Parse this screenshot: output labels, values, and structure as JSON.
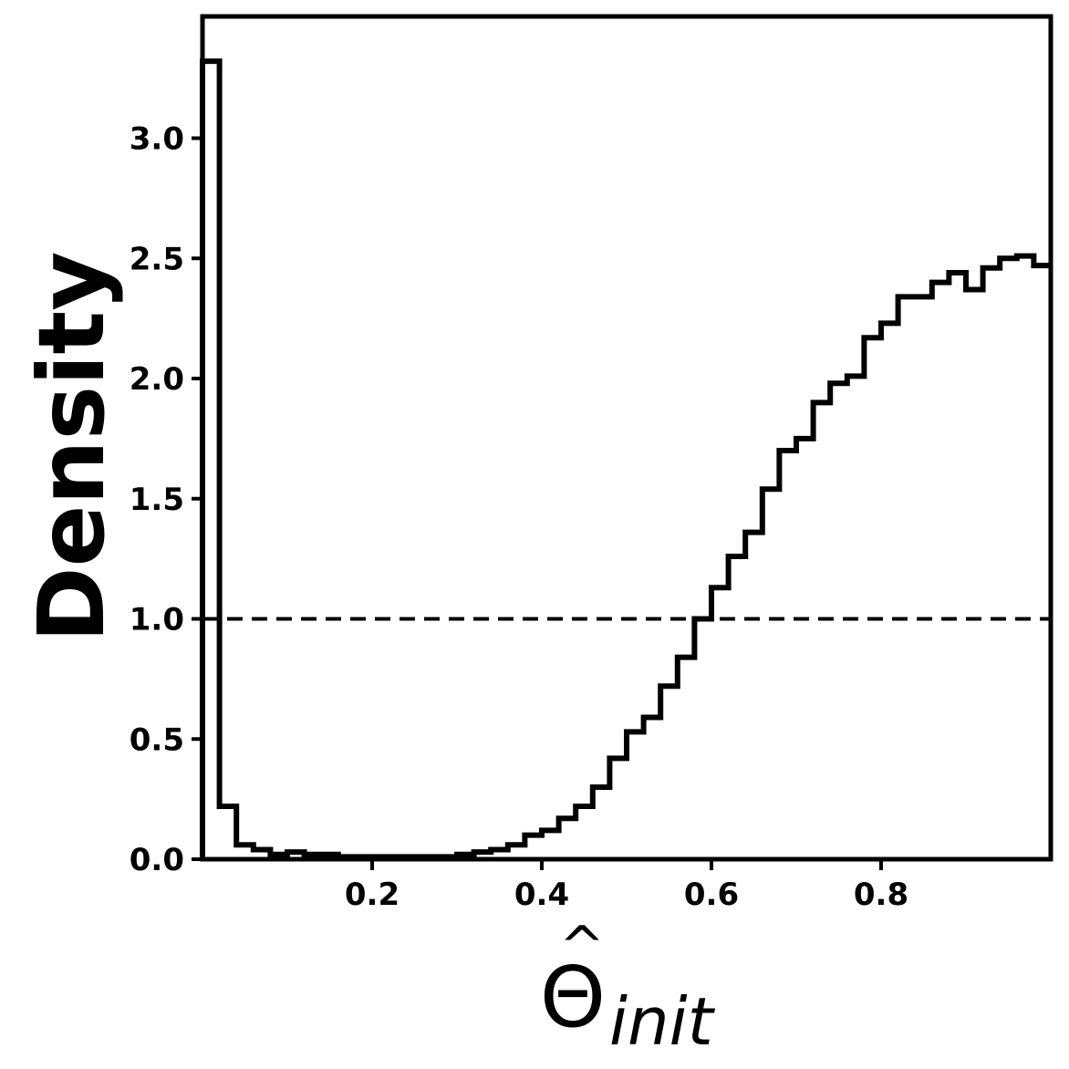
{
  "chart_data": {
    "type": "histogram",
    "ylabel": "Density",
    "xlabel": {
      "symbol": "Θ",
      "accent": "^",
      "subscript": "init"
    },
    "xlim": [
      0.0,
      1.0
    ],
    "ylim": [
      0.0,
      3.5
    ],
    "xticks": [
      {
        "value": 0.2,
        "label": "0.2"
      },
      {
        "value": 0.4,
        "label": "0.4"
      },
      {
        "value": 0.6,
        "label": "0.6"
      },
      {
        "value": 0.8,
        "label": "0.8"
      }
    ],
    "yticks": [
      {
        "value": 0.0,
        "label": "0.0"
      },
      {
        "value": 0.5,
        "label": "0.5"
      },
      {
        "value": 1.0,
        "label": "1.0"
      },
      {
        "value": 1.5,
        "label": "1.5"
      },
      {
        "value": 2.0,
        "label": "2.0"
      },
      {
        "value": 2.5,
        "label": "2.5"
      },
      {
        "value": 3.0,
        "label": "3.0"
      }
    ],
    "bin_width": 0.02,
    "bin_starts": [
      0.0,
      0.02,
      0.04,
      0.06,
      0.08,
      0.1,
      0.12,
      0.14,
      0.16,
      0.18,
      0.2,
      0.22,
      0.24,
      0.26,
      0.28,
      0.3,
      0.32,
      0.34,
      0.36,
      0.38,
      0.4,
      0.42,
      0.44,
      0.46,
      0.48,
      0.5,
      0.52,
      0.54,
      0.56,
      0.58,
      0.6,
      0.62,
      0.64,
      0.66,
      0.68,
      0.7,
      0.72,
      0.74,
      0.76,
      0.78,
      0.8,
      0.82,
      0.84,
      0.86,
      0.88,
      0.9,
      0.92,
      0.94,
      0.96,
      0.98
    ],
    "density": [
      3.32,
      0.22,
      0.06,
      0.04,
      0.02,
      0.03,
      0.02,
      0.02,
      0.01,
      0.01,
      0.01,
      0.01,
      0.01,
      0.01,
      0.01,
      0.02,
      0.03,
      0.04,
      0.06,
      0.1,
      0.12,
      0.17,
      0.22,
      0.3,
      0.42,
      0.53,
      0.59,
      0.72,
      0.84,
      1.0,
      1.13,
      1.26,
      1.36,
      1.54,
      1.7,
      1.75,
      1.9,
      1.98,
      2.01,
      2.17,
      2.23,
      2.34,
      2.34,
      2.4,
      2.44,
      2.37,
      2.46,
      2.5,
      2.51,
      2.47
    ],
    "reference_line": {
      "y": 1.0,
      "style": "dashed"
    },
    "grid": false,
    "colors": {
      "line": "#000000",
      "background": "#ffffff"
    }
  }
}
